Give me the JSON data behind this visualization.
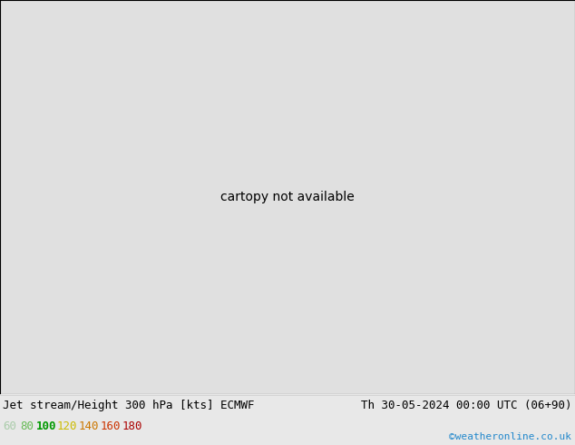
{
  "title_left": "Jet stream/Height 300 hPa [kts] ECMWF",
  "title_right": "Th 30-05-2024 00:00 UTC (06+90)",
  "credit": "©weatheronline.co.uk",
  "legend_values": [
    60,
    80,
    100,
    120,
    140,
    160,
    180
  ],
  "legend_text_colors": [
    "#aaccaa",
    "#66bb55",
    "#009900",
    "#ccbb00",
    "#cc7700",
    "#cc3300",
    "#aa0000"
  ],
  "bg_color": "#e8e8e8",
  "sea_color": "#e0e0e0",
  "land_color": "#d8ecd0",
  "figsize": [
    6.34,
    4.9
  ],
  "dpi": 100,
  "map_extent": [
    -60,
    50,
    25,
    75
  ],
  "title_fontsize": 9,
  "legend_fontsize": 9,
  "wind_colors": [
    "#c8f0b8",
    "#98e078",
    "#50c030",
    "#f0e020",
    "#f09020",
    "#f04020",
    "#c00000"
  ],
  "wind_levels": [
    60,
    80,
    100,
    120,
    140,
    160,
    180,
    999
  ]
}
